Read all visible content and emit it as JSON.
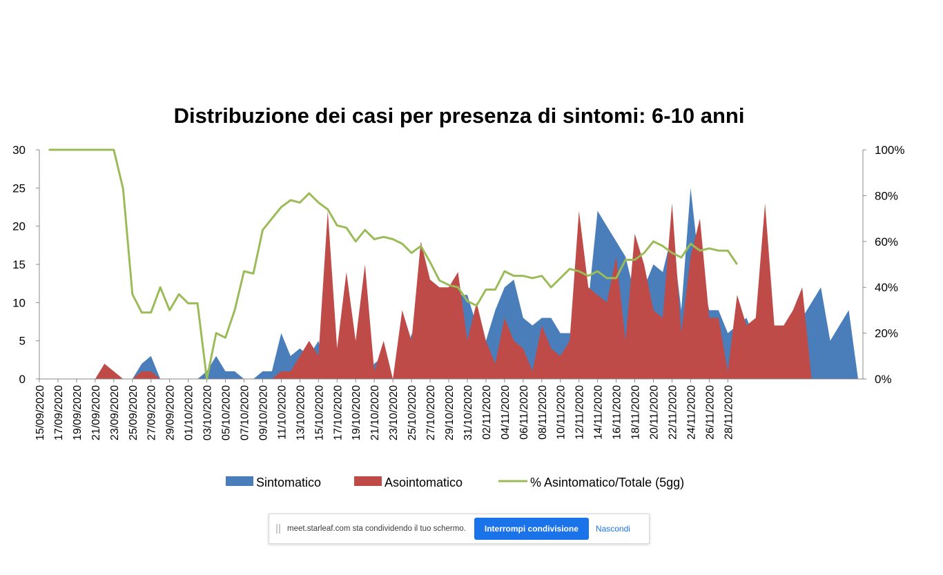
{
  "colors": {
    "sintomatico": "#4a7ebb",
    "asintomatico": "#be4b48",
    "percentuale": "#9bbb59",
    "axis": "#888888",
    "text": "#000000",
    "button": "#1a73e8"
  },
  "chart_data": {
    "type": "area",
    "title": "Distribuzione dei casi per presenza di sintomi: 6-10 anni",
    "xlabel": "",
    "ylabel": "",
    "ylim": [
      0,
      30
    ],
    "y2lim": [
      0,
      1
    ],
    "y_ticks": [
      "0",
      "5",
      "10",
      "15",
      "20",
      "25",
      "30"
    ],
    "y2_ticks": [
      "0%",
      "20%",
      "40%",
      "60%",
      "80%",
      "100%"
    ],
    "x_tick_labels": [
      "15/09/2020",
      "17/09/2020",
      "19/09/2020",
      "21/09/2020",
      "23/09/2020",
      "25/09/2020",
      "27/09/2020",
      "29/09/2020",
      "01/10/2020",
      "03/10/2020",
      "05/10/2020",
      "07/10/2020",
      "09/10/2020",
      "11/10/2020",
      "13/10/2020",
      "15/10/2020",
      "17/10/2020",
      "19/10/2020",
      "21/10/2020",
      "23/10/2020",
      "25/10/2020",
      "27/10/2020",
      "29/10/2020",
      "31/10/2020",
      "02/11/2020",
      "04/11/2020",
      "06/11/2020",
      "08/11/2020",
      "10/11/2020",
      "12/11/2020",
      "14/11/2020",
      "16/11/2020",
      "18/11/2020",
      "20/11/2020",
      "22/11/2020",
      "24/11/2020",
      "26/11/2020",
      "28/11/2020"
    ],
    "start_date": "15/09/2020",
    "end_date": "29/11/2020",
    "grid": false,
    "legend_position": "bottom",
    "series": [
      {
        "name": "Sintomatico",
        "values": [
          0,
          0,
          0,
          0,
          0,
          0,
          0,
          0,
          0,
          0,
          0,
          2,
          3,
          0,
          0,
          0,
          0,
          0,
          1,
          3,
          1,
          1,
          0,
          0,
          1,
          1,
          6,
          3,
          4,
          3,
          5,
          0,
          0,
          0,
          0,
          0,
          2,
          3,
          0,
          0,
          6,
          0,
          9,
          11,
          11,
          11,
          11,
          7,
          5,
          9,
          12,
          13,
          8,
          7,
          8,
          8,
          6,
          6,
          6,
          10,
          22,
          20,
          18,
          16,
          11,
          12,
          15,
          14,
          19,
          9,
          25,
          14,
          9,
          9,
          6,
          7,
          8,
          5,
          0,
          3,
          5,
          6,
          8,
          10,
          12,
          5,
          7,
          9,
          0
        ],
        "color": "#4a7ebb"
      },
      {
        "name": "Asointomatico",
        "values": [
          0,
          0,
          0,
          0,
          0,
          0,
          0,
          2,
          1,
          0,
          0,
          1,
          1,
          0,
          0,
          0,
          0,
          0,
          0,
          0,
          0,
          0,
          0,
          0,
          0,
          0,
          1,
          1,
          3,
          5,
          3,
          22,
          4,
          14,
          5,
          15,
          1,
          5,
          0,
          9,
          5,
          18,
          13,
          12,
          12,
          14,
          5,
          10,
          5,
          2,
          8,
          5,
          4,
          1,
          7,
          4,
          3,
          5,
          22,
          12,
          11,
          10,
          16,
          5,
          19,
          15,
          9,
          8,
          23,
          6,
          16,
          21,
          8,
          8,
          1,
          11,
          7,
          8,
          23,
          7,
          7,
          9,
          12,
          0,
          0,
          0,
          0,
          0,
          0
        ],
        "color": "#be4b48"
      },
      {
        "name": "% Asintomatico/Totale (5gg)",
        "axis": "secondary",
        "values": [
          null,
          1,
          1,
          1,
          1,
          1,
          1,
          1,
          1,
          0.83,
          0.37,
          0.29,
          0.29,
          0.4,
          0.3,
          0.37,
          0.33,
          0.33,
          0,
          0.2,
          0.18,
          0.3,
          0.47,
          0.46,
          0.65,
          0.7,
          0.75,
          0.78,
          0.77,
          0.81,
          0.77,
          0.74,
          0.67,
          0.66,
          0.6,
          0.65,
          0.61,
          0.62,
          0.61,
          0.59,
          0.55,
          0.58,
          0.51,
          0.43,
          0.41,
          0.4,
          0.34,
          0.32,
          0.39,
          0.39,
          0.47,
          0.45,
          0.45,
          0.44,
          0.45,
          0.4,
          0.44,
          0.48,
          0.47,
          0.45,
          0.47,
          0.44,
          0.44,
          0.52,
          0.52,
          0.55,
          0.6,
          0.58,
          0.55,
          0.53,
          0.59,
          0.56,
          0.57,
          0.56,
          0.56,
          0.5
        ],
        "color": "#9bbb59"
      }
    ]
  },
  "legend": {
    "sintomatico": "Sintomatico",
    "asintomatico": "Asointomatico",
    "percentuale": "% Asintomatico/Totale (5gg)"
  },
  "share_bar": {
    "message": "meet.starleaf.com sta condividendo il tuo schermo.",
    "stop_button": "Interrompi condivisione",
    "hide_button": "Nascondi"
  }
}
